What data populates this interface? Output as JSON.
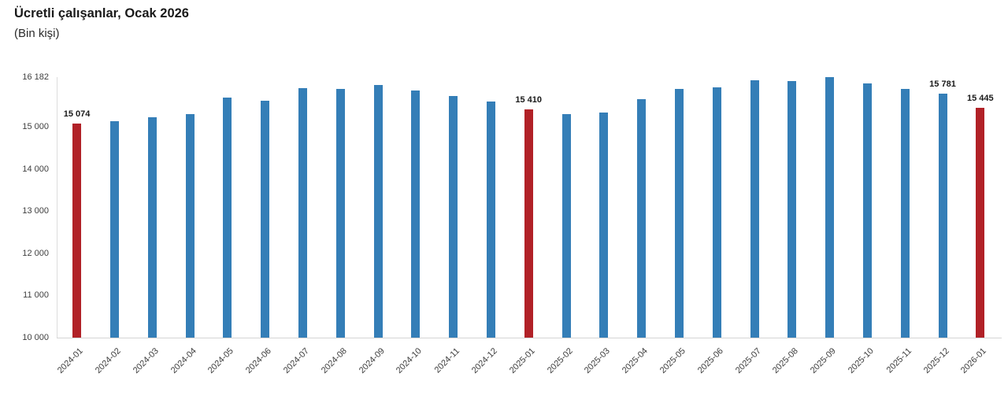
{
  "chart_data": {
    "type": "bar",
    "title": "Ücretli çalışanlar, Ocak 2026",
    "subtitle": "(Bin kişi)",
    "xlabel": "",
    "ylabel": "",
    "ylim": [
      10000,
      16182
    ],
    "grid": false,
    "legend": "none",
    "categories": [
      "2024-01",
      "2024-02",
      "2024-03",
      "2024-04",
      "2024-05",
      "2024-06",
      "2024-07",
      "2024-08",
      "2024-09",
      "2024-10",
      "2024-11",
      "2024-12",
      "2025-01",
      "2025-02",
      "2025-03",
      "2025-04",
      "2025-05",
      "2025-06",
      "2025-07",
      "2025-08",
      "2025-09",
      "2025-10",
      "2025-11",
      "2025-12",
      "2026-01"
    ],
    "values": [
      15074,
      15135,
      15230,
      15305,
      15695,
      15630,
      15915,
      15895,
      15995,
      15860,
      15730,
      15595,
      15410,
      15305,
      15350,
      15665,
      15895,
      15945,
      16110,
      16090,
      16182,
      16025,
      15905,
      15781,
      15445
    ],
    "highlight_categories": [
      "2024-01",
      "2025-01",
      "2026-01"
    ],
    "point_labels": {
      "2024-01": "15 074",
      "2025-01": "15 410",
      "2025-12": "15 781",
      "2026-01": "15 445"
    },
    "yticks": [
      {
        "label": "16 182",
        "value": 16182
      },
      {
        "label": "15 000",
        "value": 15000
      },
      {
        "label": "14 000",
        "value": 14000
      },
      {
        "label": "13 000",
        "value": 13000
      },
      {
        "label": "12 000",
        "value": 12000
      },
      {
        "label": "11 000",
        "value": 11000
      },
      {
        "label": "10 000",
        "value": 10000
      }
    ],
    "colors": {
      "bar": "#347EB7",
      "highlight": "#B12127",
      "axis_line": "#d8d8d8",
      "text": "#3f3f3f",
      "title_text": "#1a1a1a"
    }
  }
}
